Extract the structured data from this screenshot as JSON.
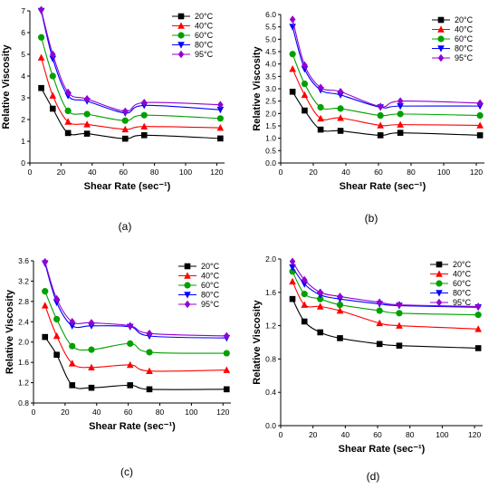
{
  "figure": {
    "panel_labels": [
      "(a)",
      "(b)",
      "(c)",
      "(d)"
    ]
  },
  "chart_data": [
    {
      "type": "line",
      "panel": "(a)",
      "xlabel": "Shear Rate (sec⁻¹)",
      "ylabel": "Relative Viscosity",
      "xlim": [
        0,
        125
      ],
      "ylim": [
        0,
        7
      ],
      "xticks": [
        0,
        20,
        40,
        60,
        80,
        100,
        120
      ],
      "yticks": [
        0,
        1,
        2,
        3,
        4,
        5,
        6,
        7
      ],
      "x": [
        7.3,
        14.7,
        24.5,
        36.7,
        61.2,
        73.4,
        122.3
      ],
      "series": [
        {
          "name": "20°C",
          "color": "#000000",
          "marker": "square",
          "values": [
            3.45,
            2.5,
            1.38,
            1.35,
            1.12,
            1.28,
            1.13
          ]
        },
        {
          "name": "40°C",
          "color": "#ff0000",
          "marker": "triangle-up",
          "values": [
            4.85,
            3.1,
            1.9,
            1.78,
            1.55,
            1.68,
            1.62
          ]
        },
        {
          "name": "60°C",
          "color": "#00a000",
          "marker": "circle",
          "values": [
            5.78,
            4.0,
            2.4,
            2.25,
            1.95,
            2.2,
            2.05
          ]
        },
        {
          "name": "80°C",
          "color": "#0000ff",
          "marker": "triangle-down",
          "values": [
            7.0,
            4.8,
            3.1,
            2.85,
            2.3,
            2.65,
            2.45
          ]
        },
        {
          "name": "95°C",
          "color": "#9400d3",
          "marker": "diamond",
          "values": [
            7.05,
            5.0,
            3.25,
            2.95,
            2.38,
            2.78,
            2.68
          ]
        }
      ]
    },
    {
      "type": "line",
      "panel": "(b)",
      "xlabel": "Shear Rate (sec⁻¹)",
      "ylabel": "Relative Viscosity",
      "xlim": [
        0,
        125
      ],
      "ylim": [
        0.0,
        6.0
      ],
      "xticks": [
        0,
        20,
        40,
        60,
        80,
        100,
        120
      ],
      "yticks": [
        "0.0",
        "0.5",
        "1.0",
        "1.5",
        "2.0",
        "2.5",
        "3.0",
        "3.5",
        "4.0",
        "4.5",
        "5.0",
        "5.5",
        "6.0"
      ],
      "x": [
        7.3,
        14.7,
        24.5,
        36.7,
        61.2,
        73.4,
        122.3
      ],
      "series": [
        {
          "name": "20°C",
          "color": "#000000",
          "marker": "square",
          "values": [
            2.88,
            2.12,
            1.35,
            1.3,
            1.12,
            1.22,
            1.12
          ]
        },
        {
          "name": "40°C",
          "color": "#ff0000",
          "marker": "triangle-up",
          "values": [
            3.8,
            2.75,
            1.8,
            1.82,
            1.52,
            1.55,
            1.52
          ]
        },
        {
          "name": "60°C",
          "color": "#00a000",
          "marker": "circle",
          "values": [
            4.4,
            3.2,
            2.25,
            2.2,
            1.92,
            1.98,
            1.92
          ]
        },
        {
          "name": "80°C",
          "color": "#0000ff",
          "marker": "triangle-down",
          "values": [
            5.5,
            3.8,
            2.95,
            2.75,
            2.25,
            2.3,
            2.3
          ]
        },
        {
          "name": "95°C",
          "color": "#9400d3",
          "marker": "diamond",
          "values": [
            5.8,
            3.95,
            3.05,
            2.88,
            2.28,
            2.5,
            2.42
          ]
        }
      ]
    },
    {
      "type": "line",
      "panel": "(c)",
      "xlabel": "Shear Rate (sec⁻¹)",
      "ylabel": "Relative Viscosity",
      "xlim": [
        0,
        125
      ],
      "ylim": [
        0.8,
        3.6
      ],
      "xticks": [
        0,
        20,
        40,
        60,
        80,
        100,
        120
      ],
      "yticks": [
        "0.8",
        "1.2",
        "1.6",
        "2.0",
        "2.4",
        "2.8",
        "3.2",
        "3.6"
      ],
      "x": [
        7.3,
        14.7,
        24.5,
        36.7,
        61.2,
        73.4,
        122.3
      ],
      "series": [
        {
          "name": "20°C",
          "color": "#000000",
          "marker": "square",
          "values": [
            2.1,
            1.75,
            1.15,
            1.1,
            1.15,
            1.07,
            1.07
          ]
        },
        {
          "name": "40°C",
          "color": "#ff0000",
          "marker": "triangle-up",
          "values": [
            2.72,
            2.12,
            1.58,
            1.5,
            1.55,
            1.43,
            1.45
          ]
        },
        {
          "name": "60°C",
          "color": "#00a000",
          "marker": "circle",
          "values": [
            3.0,
            2.45,
            1.92,
            1.85,
            1.97,
            1.8,
            1.78
          ]
        },
        {
          "name": "80°C",
          "color": "#0000ff",
          "marker": "triangle-down",
          "values": [
            3.55,
            2.78,
            2.32,
            2.32,
            2.3,
            2.12,
            2.08
          ]
        },
        {
          "name": "95°C",
          "color": "#9400d3",
          "marker": "diamond",
          "values": [
            3.58,
            2.85,
            2.4,
            2.38,
            2.32,
            2.17,
            2.12
          ]
        }
      ]
    },
    {
      "type": "line",
      "panel": "(d)",
      "xlabel": "Shear Rate (sec⁻¹)",
      "ylabel": "Relative Viscosity",
      "xlim": [
        0,
        125
      ],
      "ylim": [
        0.0,
        2.0
      ],
      "xticks": [
        0,
        20,
        40,
        60,
        80,
        100,
        120
      ],
      "yticks": [
        "0.0",
        "0.4",
        "0.8",
        "1.2",
        "1.6",
        "2.0"
      ],
      "x": [
        7.3,
        14.7,
        24.5,
        36.7,
        61.2,
        73.4,
        122.3
      ],
      "series": [
        {
          "name": "20°C",
          "color": "#000000",
          "marker": "square",
          "values": [
            1.52,
            1.25,
            1.12,
            1.05,
            0.98,
            0.96,
            0.93
          ]
        },
        {
          "name": "40°C",
          "color": "#ff0000",
          "marker": "triangle-up",
          "values": [
            1.73,
            1.45,
            1.43,
            1.38,
            1.23,
            1.2,
            1.16
          ]
        },
        {
          "name": "60°C",
          "color": "#00a000",
          "marker": "circle",
          "values": [
            1.85,
            1.58,
            1.52,
            1.45,
            1.38,
            1.35,
            1.33
          ]
        },
        {
          "name": "80°C",
          "color": "#0000ff",
          "marker": "triangle-down",
          "values": [
            1.9,
            1.7,
            1.57,
            1.52,
            1.46,
            1.44,
            1.42
          ]
        },
        {
          "name": "95°C",
          "color": "#9400d3",
          "marker": "diamond",
          "values": [
            1.97,
            1.75,
            1.6,
            1.55,
            1.48,
            1.45,
            1.43
          ]
        }
      ]
    }
  ]
}
